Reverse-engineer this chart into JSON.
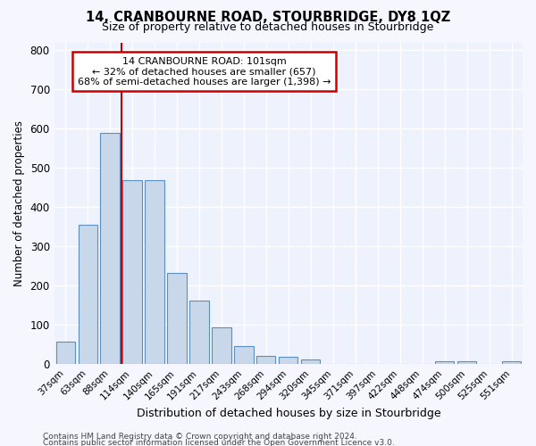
{
  "title": "14, CRANBOURNE ROAD, STOURBRIDGE, DY8 1QZ",
  "subtitle": "Size of property relative to detached houses in Stourbridge",
  "xlabel": "Distribution of detached houses by size in Stourbridge",
  "ylabel": "Number of detached properties",
  "categories": [
    "37sqm",
    "63sqm",
    "88sqm",
    "114sqm",
    "140sqm",
    "165sqm",
    "191sqm",
    "217sqm",
    "243sqm",
    "268sqm",
    "294sqm",
    "320sqm",
    "345sqm",
    "371sqm",
    "397sqm",
    "422sqm",
    "448sqm",
    "474sqm",
    "500sqm",
    "525sqm",
    "551sqm"
  ],
  "values": [
    58,
    355,
    590,
    470,
    470,
    232,
    162,
    95,
    47,
    22,
    20,
    13,
    0,
    0,
    0,
    0,
    0,
    8,
    8,
    0,
    7
  ],
  "bar_color": "#c8d8ea",
  "bar_edge_color": "#5a8fc0",
  "background_color": "#eef2fc",
  "grid_color": "#ffffff",
  "annotation_line1": "14 CRANBOURNE ROAD: 101sqm",
  "annotation_line2": "← 32% of detached houses are smaller (657)",
  "annotation_line3": "68% of semi-detached houses are larger (1,398) →",
  "red_line_x": 2.5,
  "ylim": [
    0,
    820
  ],
  "yticks": [
    0,
    100,
    200,
    300,
    400,
    500,
    600,
    700,
    800
  ],
  "footer1": "Contains HM Land Registry data © Crown copyright and database right 2024.",
  "footer2": "Contains public sector information licensed under the Open Government Licence v3.0.",
  "title_fontsize": 10.5,
  "subtitle_fontsize": 9
}
